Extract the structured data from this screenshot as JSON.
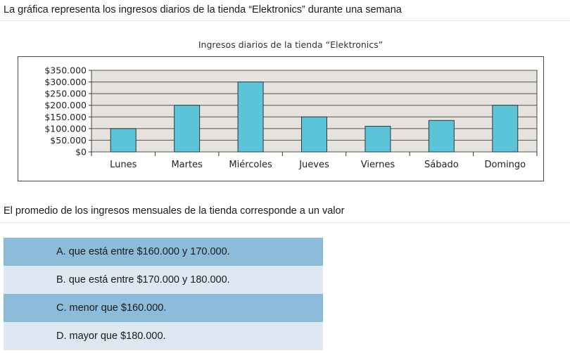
{
  "question": "La gráfica representa los ingresos diarios de la tienda “Elektronics” durante una semana",
  "prompt": "El promedio de los ingresos mensuales de la tienda corresponde a un valor",
  "options": [
    "A. que está entre $160.000 y 170.000.",
    "B. que está entre $170.000 y 180.000.",
    "C. menor que $160.000.",
    "D. mayor que $180.000."
  ],
  "colors": {
    "bar": "#5bc4d8",
    "plot_background": "#e6e2de",
    "option_dark": "#8cbcd9",
    "option_light": "#dfe8f2"
  },
  "chart_data": {
    "type": "bar",
    "title": "Ingresos diarios de la tienda “Elektronics”",
    "categories": [
      "Lunes",
      "Martes",
      "Miércoles",
      "Jueves",
      "Viernes",
      "Sábado",
      "Domingo"
    ],
    "values": [
      100000,
      200000,
      300000,
      150000,
      110000,
      135000,
      200000
    ],
    "y_ticks": [
      0,
      50000,
      100000,
      150000,
      200000,
      250000,
      300000,
      350000
    ],
    "y_tick_labels": [
      "$0",
      "$50.000",
      "$100.000",
      "$150.000",
      "$200.000",
      "$250.000",
      "$300.000",
      "$350.000"
    ],
    "ylim": [
      0,
      350000
    ],
    "grid": true,
    "legend": "none",
    "xlabel": "",
    "ylabel": ""
  }
}
